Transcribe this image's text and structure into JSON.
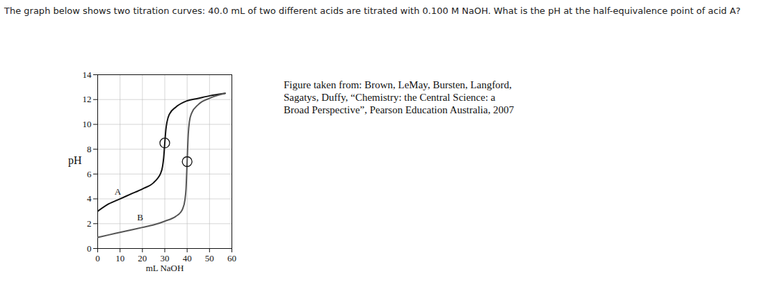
{
  "chart_data": {
    "type": "line",
    "title": "The graph below shows two titration curves: 40.0 mL of two different acids are titrated with 0.100 M NaOH. What is the pH at the half-equivalence point of acid A?",
    "caption": "Figure taken from: Brown, LeMay, Bursten, Langford, Sagatys, Duffy, “Chemistry: the Central Science: a Broad Perspective”, Pearson Education Australia, 2007",
    "x_label": "mL NaOH",
    "y_label": "pH",
    "xlim": [
      0,
      60
    ],
    "ylim": [
      0,
      14
    ],
    "xticks": [
      0,
      10,
      20,
      30,
      40,
      50,
      60
    ],
    "yticks": [
      0,
      2,
      4,
      6,
      8,
      10,
      12,
      14
    ],
    "grid": true,
    "series": [
      {
        "name": "A",
        "color": "#111111",
        "x": [
          0,
          5,
          10,
          15,
          20,
          25,
          27,
          28,
          29,
          29.5,
          30,
          30.5,
          31,
          32,
          35,
          40,
          45,
          50,
          57
        ],
        "values": [
          3.0,
          3.6,
          4.0,
          4.4,
          4.8,
          5.3,
          5.7,
          6.0,
          6.6,
          7.3,
          8.5,
          9.6,
          10.2,
          10.8,
          11.4,
          11.9,
          12.1,
          12.3,
          12.5
        ]
      },
      {
        "name": "B",
        "color": "#555555",
        "x": [
          0,
          5,
          10,
          15,
          20,
          25,
          30,
          35,
          37,
          38,
          39,
          39.5,
          40,
          40.5,
          41,
          42,
          45,
          50,
          57
        ],
        "values": [
          0.9,
          1.1,
          1.3,
          1.5,
          1.7,
          1.9,
          2.2,
          2.6,
          2.9,
          3.2,
          3.9,
          4.8,
          7.0,
          9.2,
          10.2,
          10.9,
          11.6,
          12.1,
          12.5
        ]
      }
    ],
    "annotations": [
      {
        "text": "A",
        "x": 9,
        "y": 4.6
      },
      {
        "text": "B",
        "x": 19,
        "y": 2.5
      }
    ],
    "circled_points": [
      {
        "x": 30,
        "y": 8.5
      },
      {
        "x": 40,
        "y": 7.0
      }
    ]
  }
}
